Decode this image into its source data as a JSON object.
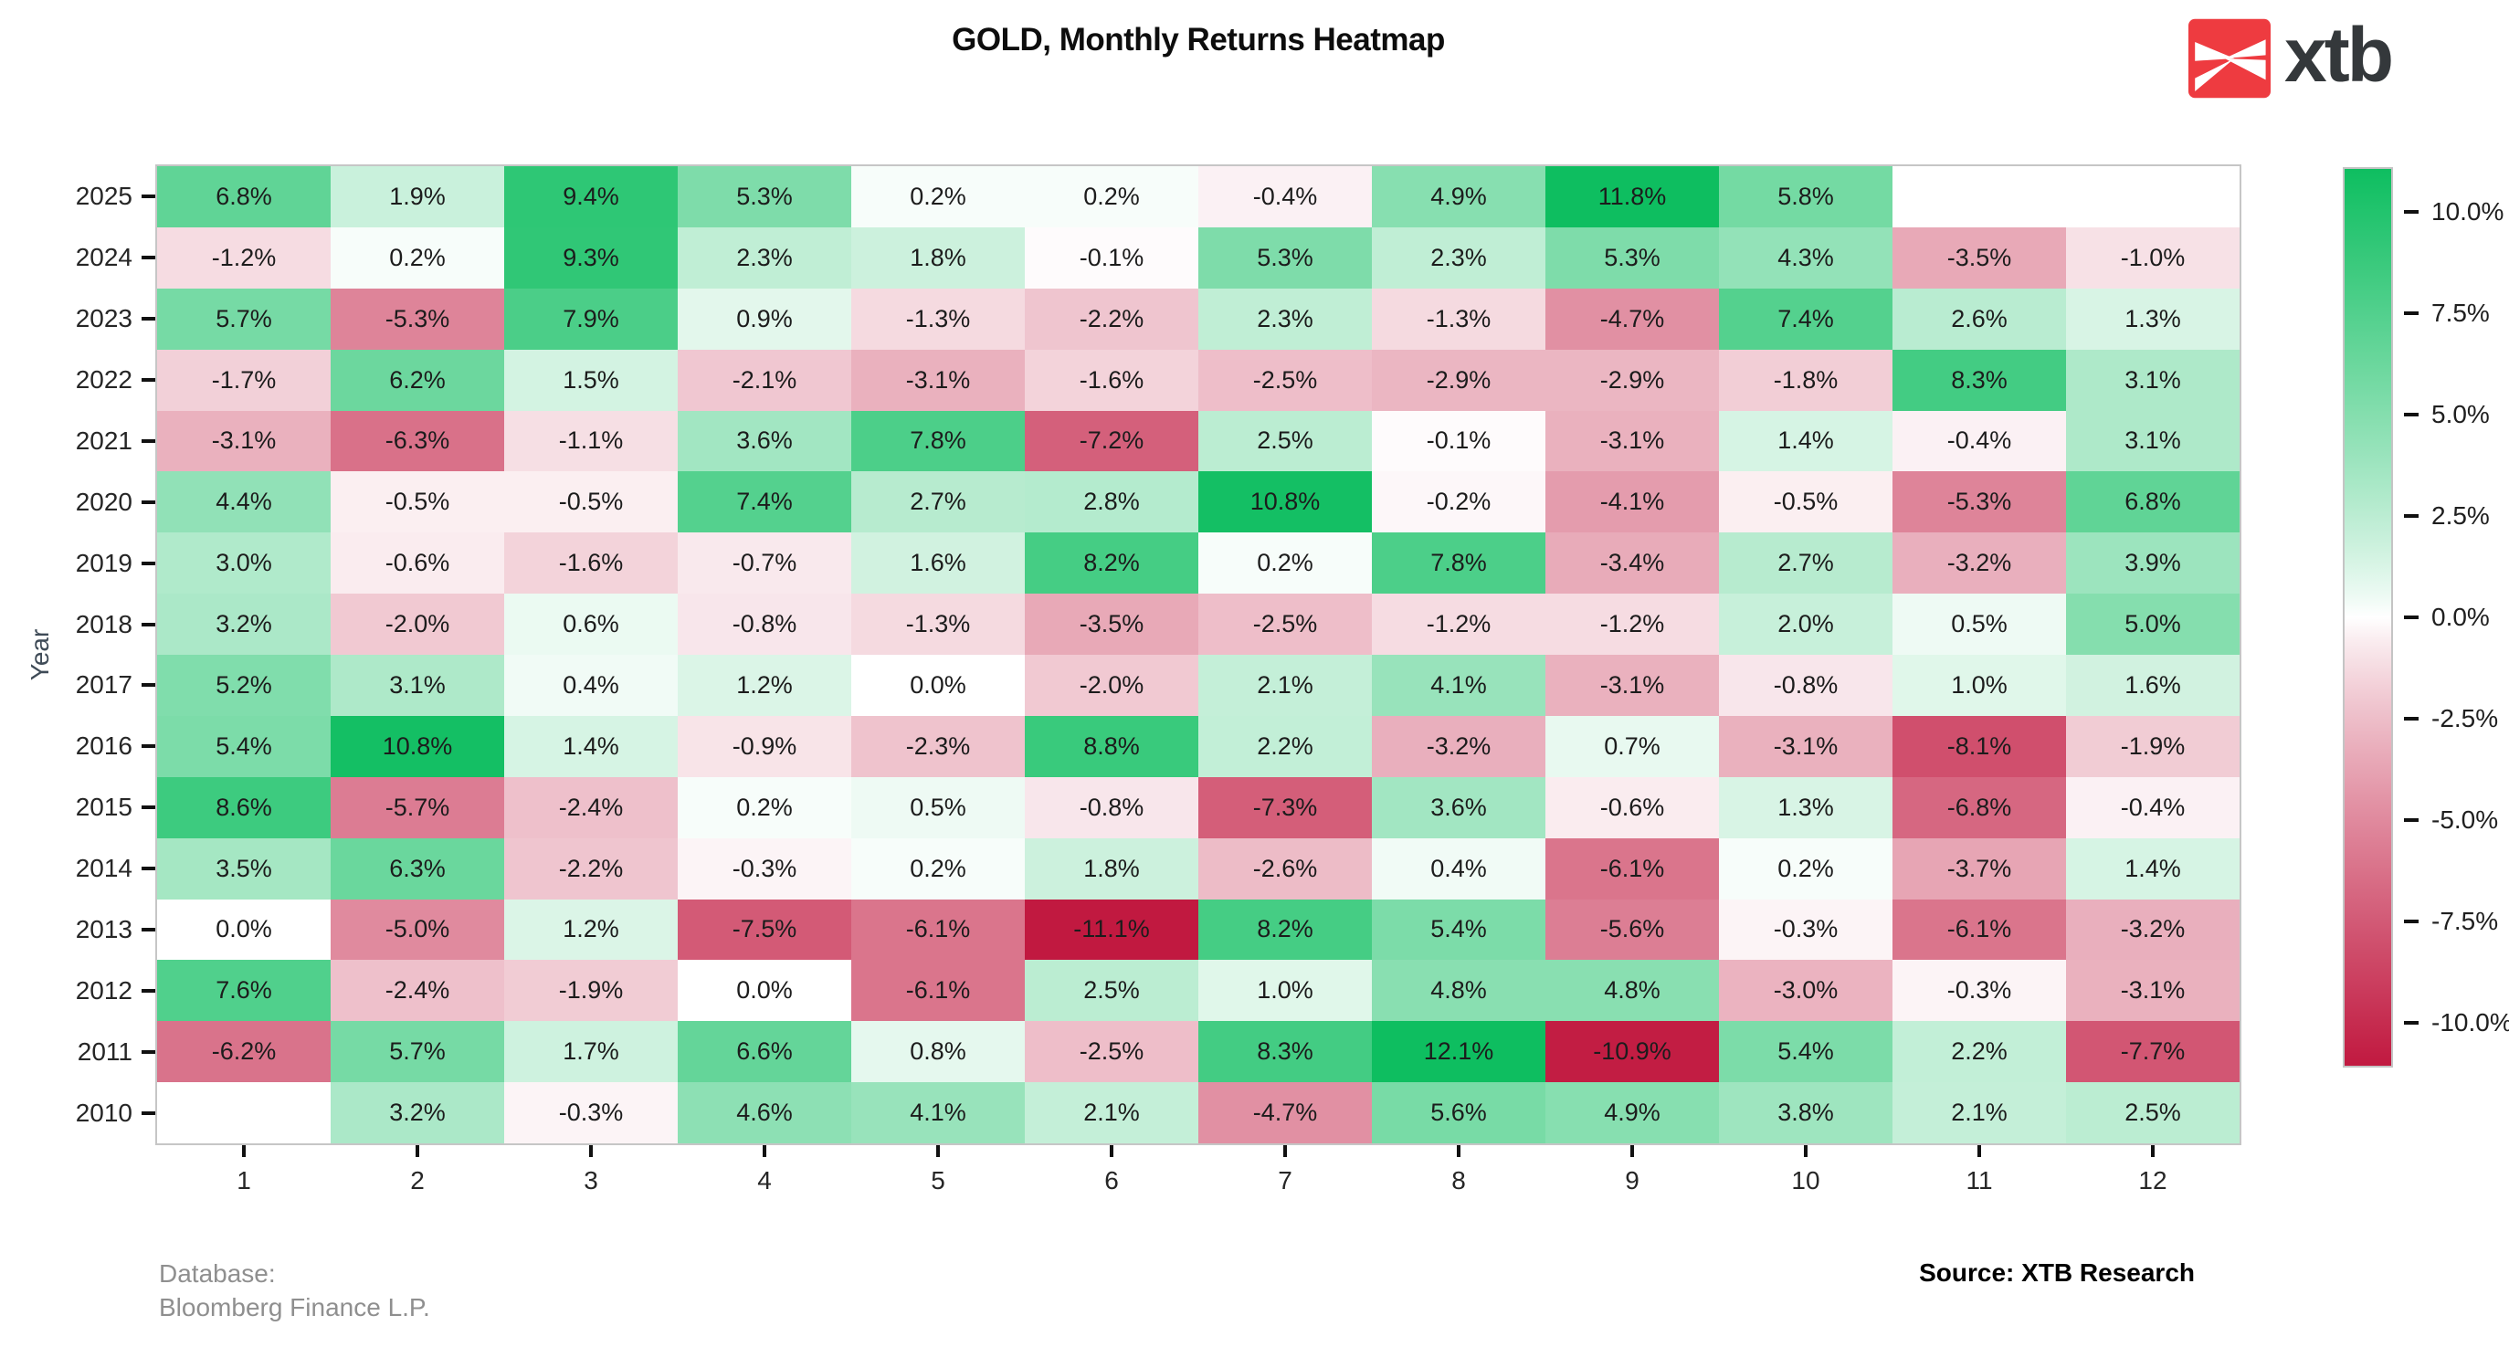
{
  "title": "GOLD, Monthly Returns Heatmap",
  "logo": {
    "text": "xtb",
    "accent_color": "#ee3b40",
    "text_color": "#34383b"
  },
  "ylabel": "Year",
  "footer": {
    "database_line1": "Database:",
    "database_line2": "Bloomberg Finance L.P.",
    "source": "Source: XTB Research"
  },
  "chart_data": {
    "type": "heatmap",
    "title": "GOLD, Monthly Returns Heatmap",
    "xlabel": "",
    "ylabel": "Year",
    "legend_position": "right",
    "grid": false,
    "columns": [
      "1",
      "2",
      "3",
      "4",
      "5",
      "6",
      "7",
      "8",
      "9",
      "10",
      "11",
      "12"
    ],
    "rows": [
      "2025",
      "2024",
      "2023",
      "2022",
      "2021",
      "2020",
      "2019",
      "2018",
      "2017",
      "2016",
      "2015",
      "2014",
      "2013",
      "2012",
      "2011",
      "2010"
    ],
    "values_pct": [
      [
        6.8,
        1.9,
        9.4,
        5.3,
        0.2,
        0.2,
        -0.4,
        4.9,
        11.8,
        5.8,
        null,
        null
      ],
      [
        -1.2,
        0.2,
        9.3,
        2.3,
        1.8,
        -0.1,
        5.3,
        2.3,
        5.3,
        4.3,
        -3.5,
        -1.0
      ],
      [
        5.7,
        -5.3,
        7.9,
        0.9,
        -1.3,
        -2.2,
        2.3,
        -1.3,
        -4.7,
        7.4,
        2.6,
        1.3
      ],
      [
        -1.7,
        6.2,
        1.5,
        -2.1,
        -3.1,
        -1.6,
        -2.5,
        -2.9,
        -2.9,
        -1.8,
        8.3,
        3.1
      ],
      [
        -3.1,
        -6.3,
        -1.1,
        3.6,
        7.8,
        -7.2,
        2.5,
        -0.1,
        -3.1,
        1.4,
        -0.4,
        3.1
      ],
      [
        4.4,
        -0.5,
        -0.5,
        7.4,
        2.7,
        2.8,
        10.8,
        -0.2,
        -4.1,
        -0.5,
        -5.3,
        6.8
      ],
      [
        3.0,
        -0.6,
        -1.6,
        -0.7,
        1.6,
        8.2,
        0.2,
        7.8,
        -3.4,
        2.7,
        -3.2,
        3.9
      ],
      [
        3.2,
        -2.0,
        0.6,
        -0.8,
        -1.3,
        -3.5,
        -2.5,
        -1.2,
        -1.2,
        2.0,
        0.5,
        5.0
      ],
      [
        5.2,
        3.1,
        0.4,
        1.2,
        0.0,
        -2.0,
        2.1,
        4.1,
        -3.1,
        -0.8,
        1.0,
        1.6
      ],
      [
        5.4,
        10.8,
        1.4,
        -0.9,
        -2.3,
        8.8,
        2.2,
        -3.2,
        0.7,
        -3.1,
        -8.1,
        -1.9
      ],
      [
        8.6,
        -5.7,
        -2.4,
        0.2,
        0.5,
        -0.8,
        -7.3,
        3.6,
        -0.6,
        1.3,
        -6.8,
        -0.4
      ],
      [
        3.5,
        6.3,
        -2.2,
        -0.3,
        0.2,
        1.8,
        -2.6,
        0.4,
        -6.1,
        0.2,
        -3.7,
        1.4
      ],
      [
        0.0,
        -5.0,
        1.2,
        -7.5,
        -6.1,
        -11.1,
        8.2,
        5.4,
        -5.6,
        -0.3,
        -6.1,
        -3.2
      ],
      [
        7.6,
        -2.4,
        -1.9,
        -0.0,
        -6.1,
        2.5,
        1.0,
        4.8,
        4.8,
        -3.0,
        -0.3,
        -3.1
      ],
      [
        -6.2,
        5.7,
        1.7,
        6.6,
        0.8,
        -2.5,
        8.3,
        12.1,
        -10.9,
        5.4,
        2.2,
        -7.7
      ],
      [
        null,
        3.2,
        -0.3,
        4.6,
        4.1,
        2.1,
        -4.7,
        5.6,
        4.9,
        3.8,
        2.1,
        2.5
      ]
    ],
    "value_suffix": "%",
    "color_scale": {
      "vmax_abs": 11.1,
      "gamma": 0.85,
      "positive_color": "#0ebe60",
      "negative_color": "#c11940",
      "zero_color": "#ffffff"
    },
    "colorbar_ticks": [
      {
        "label": "10.0%",
        "value": 10.0
      },
      {
        "label": "7.5%",
        "value": 7.5
      },
      {
        "label": "5.0%",
        "value": 5.0
      },
      {
        "label": "2.5%",
        "value": 2.5
      },
      {
        "label": "0.0%",
        "value": 0.0
      },
      {
        "label": "-2.5%",
        "value": -2.5
      },
      {
        "label": "-5.0%",
        "value": -5.0
      },
      {
        "label": "-7.5%",
        "value": -7.5
      },
      {
        "label": "-10.0%",
        "value": -10.0
      }
    ]
  }
}
